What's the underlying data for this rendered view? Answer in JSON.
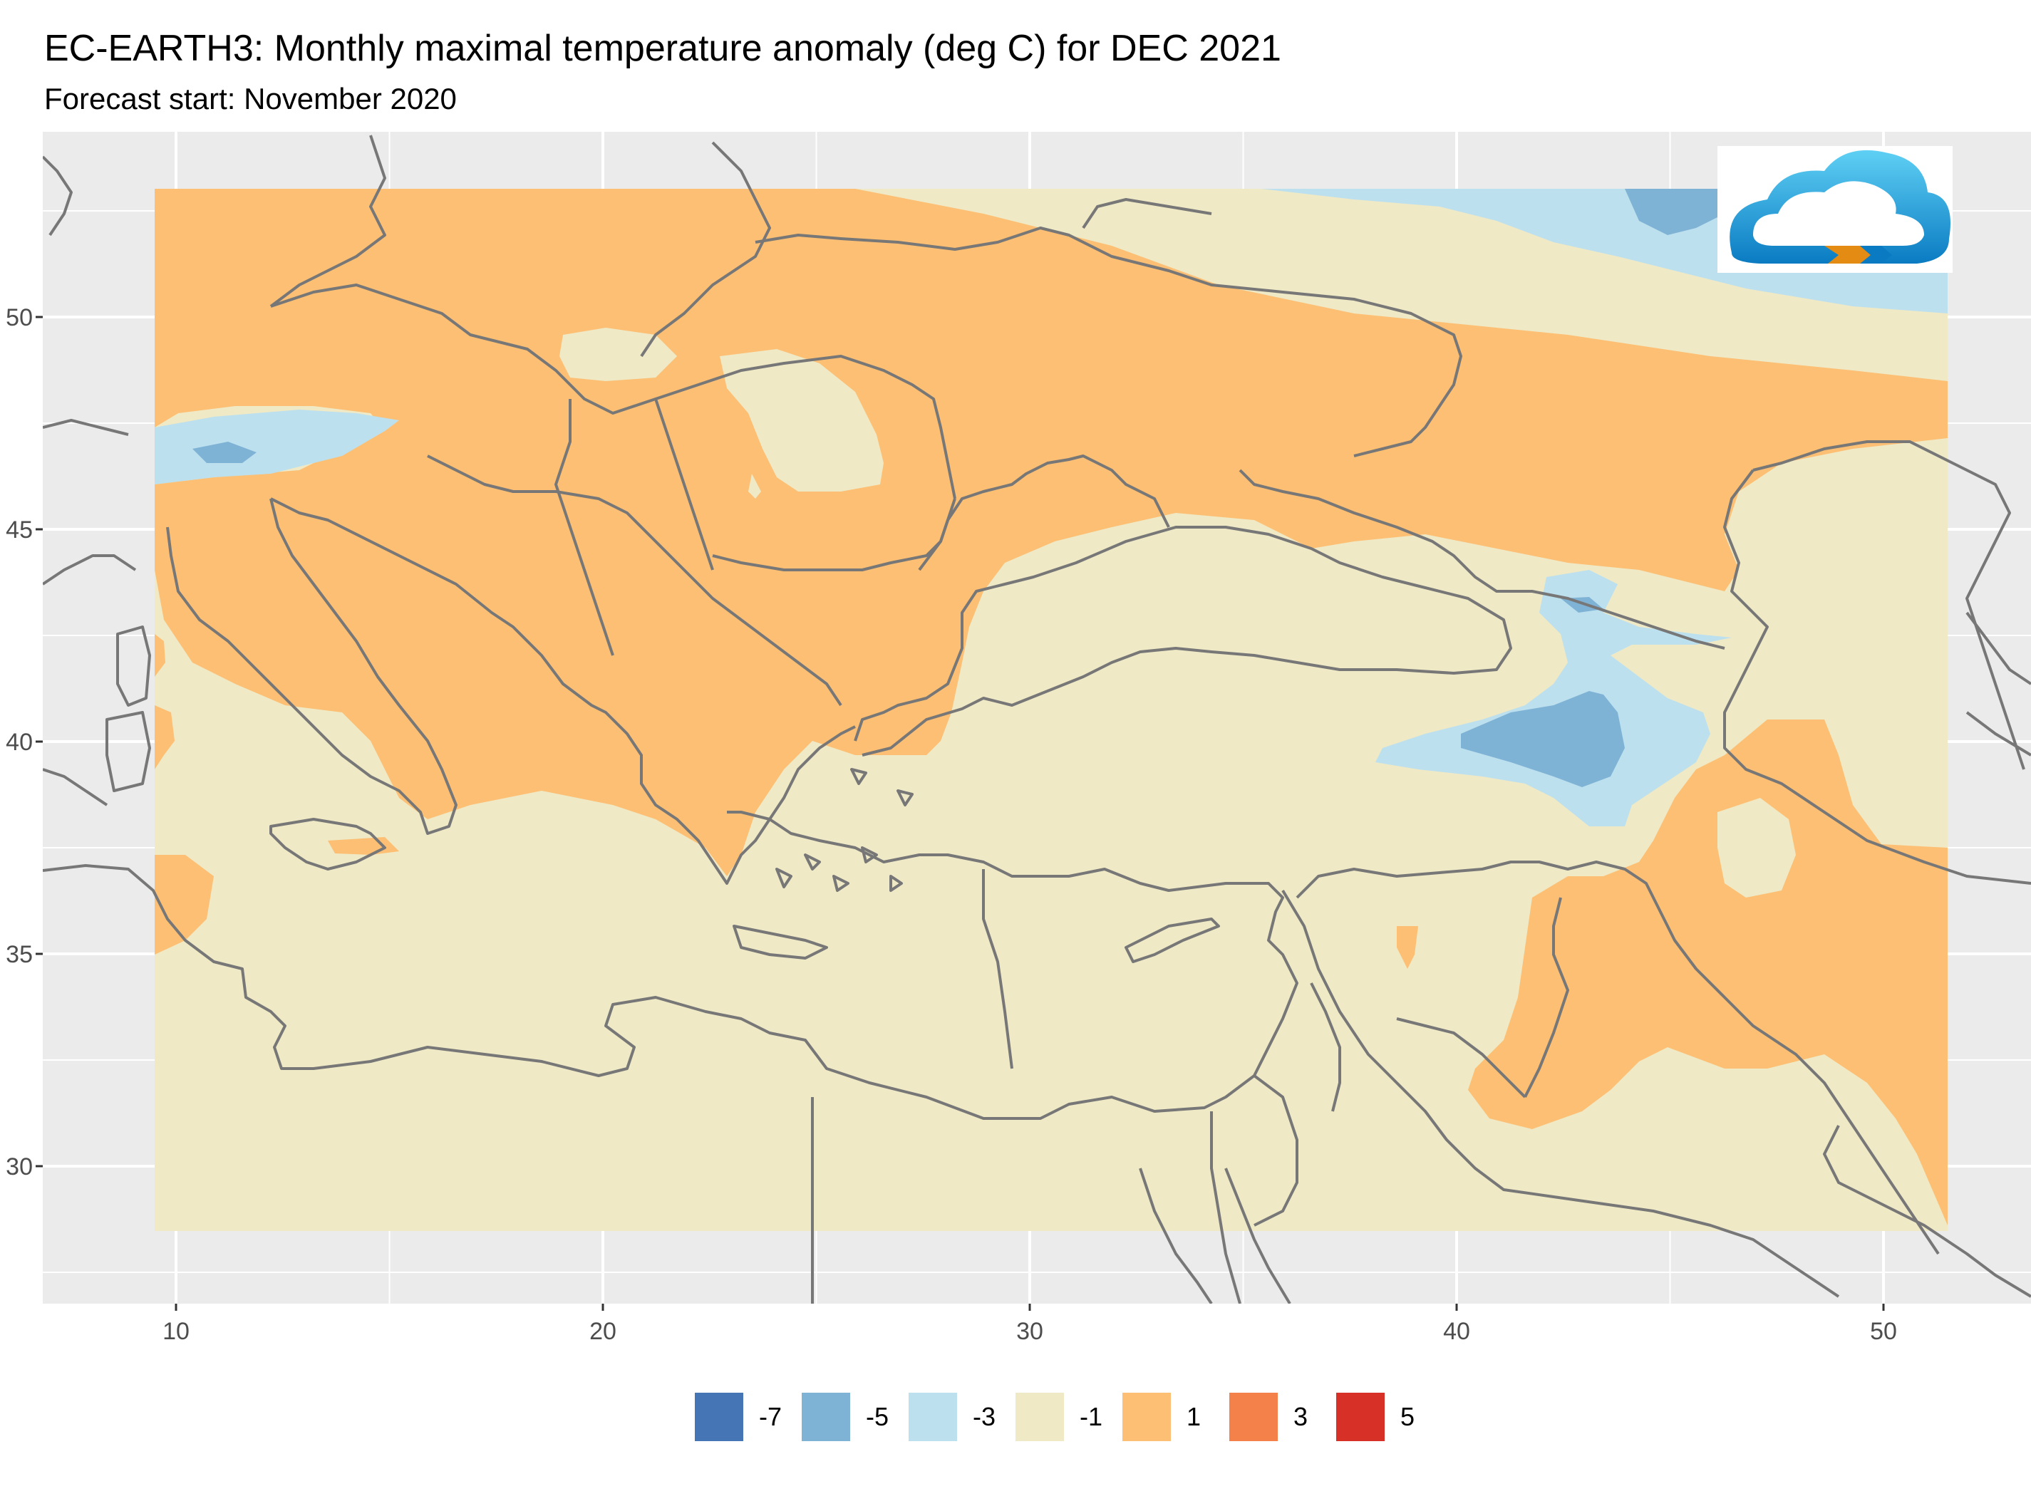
{
  "title": "EC-EARTH3: Monthly maximal temperature anomaly (deg C) for DEC 2021",
  "subtitle": "Forecast start: November 2020",
  "map": {
    "x_axis": {
      "ticks": [
        10,
        20,
        30,
        40,
        50
      ],
      "range": [
        7,
        55
      ]
    },
    "y_axis": {
      "ticks": [
        30,
        35,
        40,
        45,
        50
      ],
      "range": [
        27,
        54
      ]
    },
    "background": "#ebebeb",
    "grid": true,
    "data_extent": {
      "lon": [
        9.5,
        51.7
      ],
      "lat": [
        28.5,
        53
      ]
    },
    "logo": "cloud-logo"
  },
  "legend": {
    "position": "bottom",
    "items": [
      {
        "label": "-7",
        "color": "#4575b4"
      },
      {
        "label": "-5",
        "color": "#7fb3d5"
      },
      {
        "label": "-3",
        "color": "#bde0ee"
      },
      {
        "label": "-1",
        "color": "#efe9c6"
      },
      {
        "label": "1",
        "color": "#fcbf73"
      },
      {
        "label": "3",
        "color": "#f4804a"
      },
      {
        "label": "5",
        "color": "#d73027"
      }
    ]
  }
}
